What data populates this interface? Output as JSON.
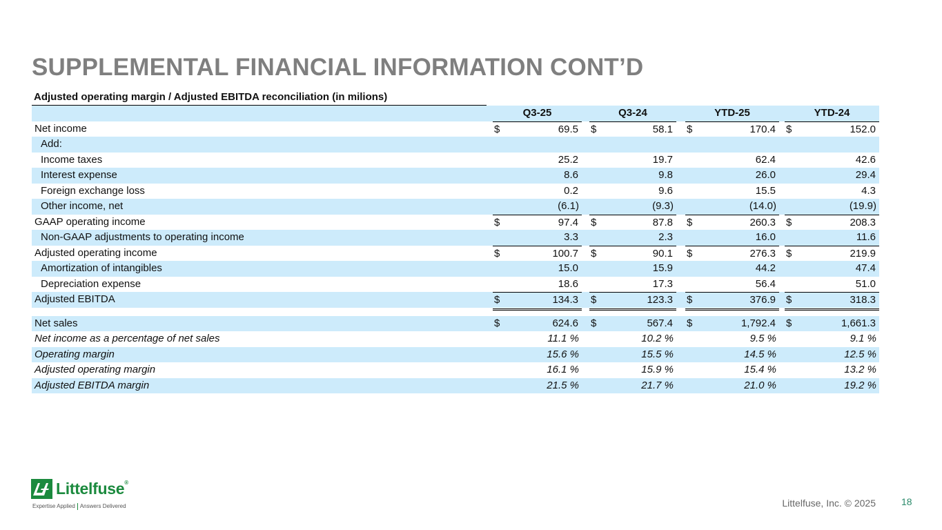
{
  "title": "SUPPLEMENTAL FINANCIAL INFORMATION CONT’D",
  "section_title": "Adjusted operating margin / Adjusted EBITDA reconciliation (in milions)",
  "columns": [
    "Q3-25",
    "Q3-24",
    "YTD-25",
    "YTD-24"
  ],
  "currency_symbol": "$",
  "percent_symbol": "%",
  "rows": {
    "net_income": {
      "label": "Net income",
      "values": [
        "69.5",
        "58.1",
        "170.4",
        "152.0"
      ]
    },
    "add": {
      "label": "Add:"
    },
    "income_taxes": {
      "label": "Income taxes",
      "values": [
        "25.2",
        "19.7",
        "62.4",
        "42.6"
      ]
    },
    "interest_expense": {
      "label": "Interest expense",
      "values": [
        "8.6",
        "9.8",
        "26.0",
        "29.4"
      ]
    },
    "fx_loss": {
      "label": "Foreign exchange loss",
      "values": [
        "0.2",
        "9.6",
        "15.5",
        "4.3"
      ]
    },
    "other_income": {
      "label": "Other income, net",
      "values": [
        "(6.1)",
        "(9.3)",
        "(14.0)",
        "(19.9)"
      ]
    },
    "gaap_op_income": {
      "label": "GAAP operating income",
      "values": [
        "97.4",
        "87.8",
        "260.3",
        "208.3"
      ]
    },
    "non_gaap_adj": {
      "label": "Non-GAAP adjustments to operating income",
      "values": [
        "3.3",
        "2.3",
        "16.0",
        "11.6"
      ]
    },
    "adj_op_income": {
      "label": "Adjusted operating income",
      "values": [
        "100.7",
        "90.1",
        "276.3",
        "219.9"
      ]
    },
    "amortization": {
      "label": "Amortization of intangibles",
      "values": [
        "15.0",
        "15.9",
        "44.2",
        "47.4"
      ]
    },
    "depreciation": {
      "label": "Depreciation expense",
      "values": [
        "18.6",
        "17.3",
        "56.4",
        "51.0"
      ]
    },
    "adj_ebitda": {
      "label": "Adjusted EBITDA",
      "values": [
        "134.3",
        "123.3",
        "376.9",
        "318.3"
      ]
    },
    "net_sales": {
      "label": "Net sales",
      "values": [
        "624.6",
        "567.4",
        "1,792.4",
        "1,661.3"
      ]
    },
    "ni_pct": {
      "label": "Net income as a percentage of net sales",
      "values": [
        "11.1",
        "10.2",
        "9.5",
        "9.1"
      ]
    },
    "op_margin": {
      "label": "Operating margin",
      "values": [
        "15.6",
        "15.5",
        "14.5",
        "12.5"
      ]
    },
    "adj_op_margin": {
      "label": "Adjusted operating margin",
      "values": [
        "16.1",
        "15.9",
        "15.4",
        "13.2"
      ]
    },
    "adj_ebitda_margin": {
      "label": "Adjusted EBITDA margin",
      "values": [
        "21.5",
        "21.7",
        "21.0",
        "19.2"
      ]
    }
  },
  "footer": {
    "logo_text": "Littelfuse",
    "logo_reg": "®",
    "tagline_left": "Expertise Applied",
    "tagline_right": "Answers Delivered",
    "copyright": "Littelfuse, Inc. © 2025",
    "page_number": "18"
  },
  "colors": {
    "title": "#7f7f7f",
    "row_shade": "#cdebfb",
    "brand_green": "#1b8a3e"
  }
}
